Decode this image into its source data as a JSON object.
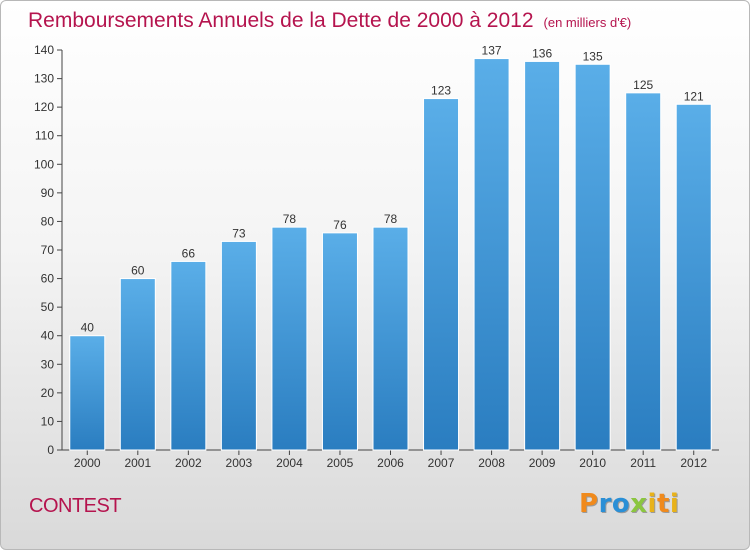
{
  "title": "Remboursements Annuels de la Dette de 2000 à 2012",
  "subtitle": "(en milliers d'€)",
  "commune": "CONTEST",
  "logo": {
    "text": "Proxiti",
    "colors": [
      "#f08a1c",
      "#2a8fd6",
      "#8bc63f",
      "#e8b21a"
    ]
  },
  "colors": {
    "title": "#b5144e",
    "bar_top": "#5aaee8",
    "bar_bottom": "#2a7dc0"
  },
  "chart_data": {
    "type": "bar",
    "title": "Remboursements Annuels de la Dette de 2000 à 2012",
    "subtitle": "(en milliers d'€)",
    "xlabel": "",
    "ylabel": "",
    "categories": [
      "2000",
      "2001",
      "2002",
      "2003",
      "2004",
      "2005",
      "2006",
      "2007",
      "2008",
      "2009",
      "2010",
      "2011",
      "2012"
    ],
    "values": [
      40,
      60,
      66,
      73,
      78,
      76,
      78,
      123,
      137,
      136,
      135,
      125,
      121
    ],
    "ylim": [
      0,
      140
    ],
    "yticks": [
      0,
      10,
      20,
      30,
      40,
      50,
      60,
      70,
      80,
      90,
      100,
      110,
      120,
      130,
      140
    ],
    "grid": false,
    "legend": "none"
  }
}
